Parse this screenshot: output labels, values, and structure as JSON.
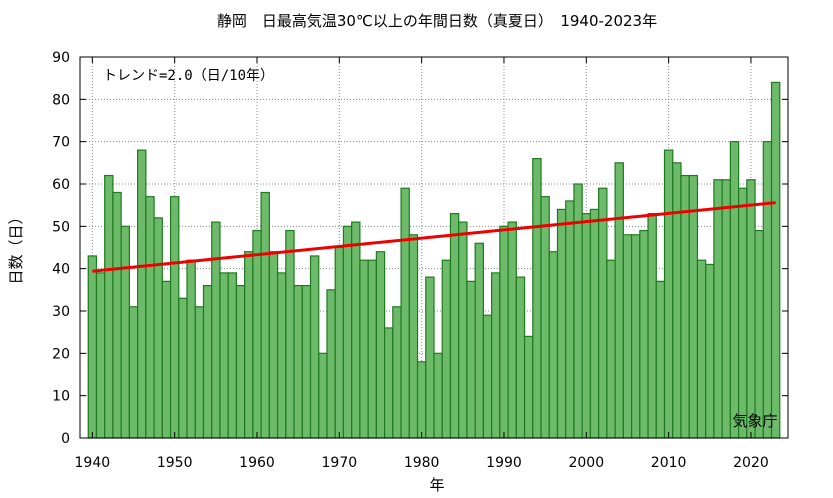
{
  "chart_data": {
    "type": "bar",
    "title": "静岡　日最高気温30℃以上の年間日数（真夏日）　1940-2023年",
    "xlabel": "年",
    "ylabel": "日数（日）",
    "trend_label": "トレンド=2.0（日/10年）",
    "source_label": "気象庁",
    "x_start": 1940,
    "x_end": 2023,
    "xlim": [
      1938.5,
      2024.5
    ],
    "ylim": [
      0,
      90
    ],
    "x_ticks": [
      1940,
      1950,
      1960,
      1970,
      1980,
      1990,
      2000,
      2010,
      2020
    ],
    "y_ticks": [
      0,
      10,
      20,
      30,
      40,
      50,
      60,
      70,
      80,
      90
    ],
    "grid": true,
    "values": [
      43,
      39,
      62,
      58,
      50,
      31,
      68,
      57,
      52,
      37,
      57,
      33,
      42,
      31,
      36,
      51,
      39,
      39,
      36,
      44,
      49,
      58,
      44,
      39,
      49,
      36,
      36,
      43,
      20,
      35,
      45,
      50,
      51,
      42,
      42,
      44,
      26,
      31,
      59,
      48,
      18,
      38,
      20,
      42,
      53,
      51,
      37,
      46,
      29,
      39,
      50,
      51,
      38,
      24,
      66,
      57,
      44,
      54,
      56,
      60,
      53,
      54,
      59,
      42,
      65,
      48,
      48,
      49,
      53,
      37,
      68,
      65,
      62,
      62,
      42,
      41,
      61,
      61,
      70,
      59,
      61,
      49,
      70,
      84
    ],
    "trend": {
      "x": [
        1940,
        2023
      ],
      "y": [
        39.4,
        55.6
      ]
    },
    "colors": {
      "bar_fill": "#6dbb6a",
      "bar_stroke": "#1e7a1e",
      "trend": "#ee0000"
    }
  }
}
